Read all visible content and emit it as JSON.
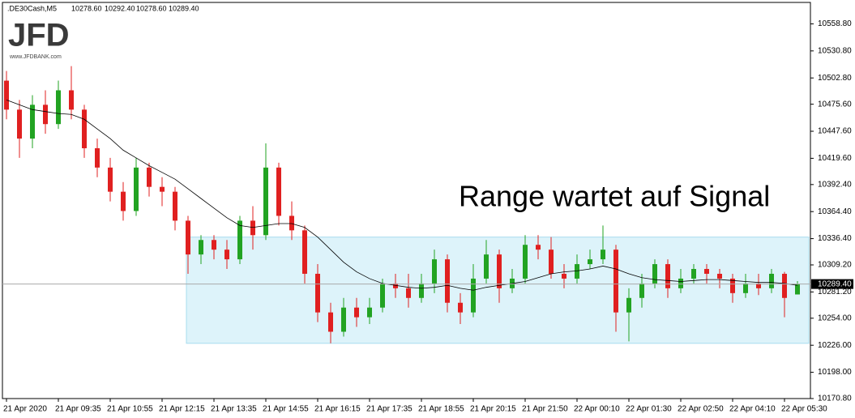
{
  "logo": {
    "name": "JFD",
    "url": "www.JFDBANK.com"
  },
  "chart_data": {
    "type": "candlestick",
    "symbol": ".DE30Cash,M5",
    "last_labels": [
      "10278.60",
      "10292.40",
      "10278.60",
      "10289.40"
    ],
    "annotation": "Range wartet auf Signal",
    "ylim": [
      10170.8,
      10581
    ],
    "yticks": [
      {
        "value": 10558.8,
        "label": "10558.80"
      },
      {
        "value": 10530.8,
        "label": "10530.80"
      },
      {
        "value": 10502.8,
        "label": "10502.80"
      },
      {
        "value": 10475.6,
        "label": "10475.60"
      },
      {
        "value": 10447.6,
        "label": "10447.60"
      },
      {
        "value": 10419.6,
        "label": "10419.60"
      },
      {
        "value": 10392.4,
        "label": "10392.40"
      },
      {
        "value": 10364.4,
        "label": "10364.40"
      },
      {
        "value": 10336.4,
        "label": "10336.40"
      },
      {
        "value": 10309.2,
        "label": "10309.20"
      },
      {
        "value": 10281.2,
        "label": "10281.20"
      },
      {
        "value": 10254,
        "label": "10254.00"
      },
      {
        "value": 10226,
        "label": "10226.00"
      },
      {
        "value": 10198,
        "label": "10198.00"
      },
      {
        "value": 10170.8,
        "label": "10170.80"
      }
    ],
    "xticks": [
      {
        "value": 0,
        "label": "21 Apr 2020"
      },
      {
        "value": 4,
        "label": "21 Apr 09:35"
      },
      {
        "value": 8,
        "label": "21 Apr 10:55"
      },
      {
        "value": 12,
        "label": "21 Apr 12:15"
      },
      {
        "value": 16,
        "label": "21 Apr 13:35"
      },
      {
        "value": 20,
        "label": "21 Apr 14:55"
      },
      {
        "value": 24,
        "label": "21 Apr 16:15"
      },
      {
        "value": 28,
        "label": "21 Apr 17:35"
      },
      {
        "value": 32,
        "label": "21 Apr 18:55"
      },
      {
        "value": 36,
        "label": "21 Apr 20:15"
      },
      {
        "value": 40,
        "label": "21 Apr 21:50"
      },
      {
        "value": 44,
        "label": "22 Apr 00:10"
      },
      {
        "value": 48,
        "label": "22 Apr 01:30"
      },
      {
        "value": 52,
        "label": "22 Apr 02:50"
      },
      {
        "value": 56,
        "label": "22 Apr 04:10"
      },
      {
        "value": 60,
        "label": "22 Apr 05:30"
      }
    ],
    "up_color": "#22a322",
    "down_color": "#e02020",
    "open": [
      10500,
      10470,
      10440,
      10475,
      10455,
      10490,
      10470,
      10430,
      10410,
      10385,
      10365,
      10410,
      10390,
      10385,
      10355,
      10320,
      10335,
      10325,
      10315,
      10355,
      10340,
      10410,
      10360,
      10345,
      10300,
      10260,
      10240,
      10265,
      10255,
      10265,
      10290,
      10285,
      10275,
      10290,
      10315,
      10270,
      10260,
      10295,
      10320,
      10285,
      10295,
      10330,
      10325,
      10300,
      10295,
      10310,
      10315,
      10325,
      10260,
      10275,
      10290,
      10310,
      10285,
      10295,
      10305,
      10300,
      10295,
      10280,
      10290,
      10285,
      10300,
      10278.6
    ],
    "high": [
      10510,
      10480,
      10485,
      10490,
      10500,
      10515,
      10475,
      10440,
      10420,
      10395,
      10420,
      10415,
      10400,
      10390,
      10360,
      10340,
      10340,
      10335,
      10360,
      10370,
      10435,
      10415,
      10375,
      10350,
      10310,
      10270,
      10275,
      10275,
      10275,
      10295,
      10300,
      10300,
      10300,
      10325,
      10320,
      10280,
      10310,
      10335,
      10325,
      10305,
      10340,
      10340,
      10338,
      10310,
      10320,
      10325,
      10350,
      10330,
      10285,
      10300,
      10315,
      10315,
      10305,
      10310,
      10310,
      10305,
      10300,
      10300,
      10300,
      10305,
      10302,
      10292.4
    ],
    "low": [
      10460,
      10420,
      10430,
      10445,
      10450,
      10460,
      10420,
      10400,
      10375,
      10355,
      10360,
      10380,
      10370,
      10345,
      10300,
      10310,
      10315,
      10305,
      10310,
      10325,
      10335,
      10350,
      10335,
      10290,
      10250,
      10228,
      10235,
      10245,
      10248,
      10260,
      10275,
      10265,
      10270,
      10280,
      10260,
      10248,
      10255,
      10290,
      10270,
      10280,
      10290,
      10315,
      10295,
      10285,
      10290,
      10305,
      10310,
      10240,
      10230,
      10265,
      10285,
      10275,
      10280,
      10290,
      10290,
      10285,
      10270,
      10275,
      10278,
      10280,
      10255,
      10278.6
    ],
    "close": [
      10470,
      10440,
      10475,
      10455,
      10490,
      10470,
      10430,
      10410,
      10385,
      10365,
      10410,
      10390,
      10385,
      10355,
      10320,
      10335,
      10325,
      10315,
      10355,
      10340,
      10410,
      10360,
      10345,
      10300,
      10260,
      10240,
      10265,
      10255,
      10265,
      10290,
      10285,
      10275,
      10290,
      10315,
      10270,
      10260,
      10295,
      10320,
      10285,
      10295,
      10330,
      10325,
      10300,
      10295,
      10310,
      10315,
      10325,
      10260,
      10275,
      10290,
      10310,
      10285,
      10295,
      10305,
      10300,
      10295,
      10280,
      10290,
      10285,
      10300,
      10275,
      10289.4
    ],
    "ma": {
      "color": "#000000",
      "values": [
        10480,
        10475,
        10470,
        10468,
        10466,
        10465,
        10460,
        10450,
        10440,
        10428,
        10420,
        10412,
        10405,
        10398,
        10388,
        10378,
        10368,
        10358,
        10350,
        10348,
        10350,
        10352,
        10352,
        10348,
        10338,
        10325,
        10312,
        10302,
        10295,
        10290,
        10288,
        10286,
        10285,
        10286,
        10288,
        10285,
        10283,
        10286,
        10288,
        10290,
        10292,
        10296,
        10300,
        10302,
        10303,
        10305,
        10308,
        10305,
        10300,
        10296,
        10294,
        10293,
        10292,
        10293,
        10294,
        10294,
        10293,
        10292,
        10291,
        10291,
        10290,
        10288
      ]
    },
    "range": {
      "low": 10228,
      "high": 10338,
      "start": 14,
      "color": "#ddf3fa",
      "border": "#a8dcee"
    }
  }
}
